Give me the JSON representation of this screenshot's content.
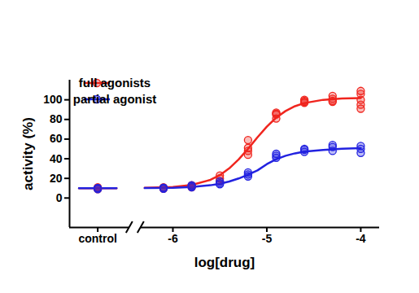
{
  "chart_data": {
    "type": "scatter",
    "xlabel": "log[drug]",
    "ylabel": "activity (%)",
    "xlim": [
      -7.1,
      -3.8
    ],
    "ylim": [
      -30,
      120
    ],
    "xticks": [
      {
        "value": -6.8,
        "label": "control"
      },
      -6,
      -5,
      -4
    ],
    "yticks": [
      0,
      20,
      40,
      60,
      80,
      100
    ],
    "legend": "upper left",
    "series": [
      {
        "name": "full agonists",
        "color": "#f0251e",
        "type": "scatter",
        "marker": "circle",
        "x": [
          -6.8,
          -6.8,
          -6.8,
          -6.8,
          -6.1,
          -6.1,
          -6.1,
          -5.8,
          -5.8,
          -5.8,
          -5.5,
          -5.5,
          -5.5,
          -5.2,
          -5.2,
          -5.2,
          -5.2,
          -4.9,
          -4.9,
          -4.9,
          -4.9,
          -4.6,
          -4.6,
          -4.6,
          -4.6,
          -4.3,
          -4.3,
          -4.3,
          -4.3,
          -4.0,
          -4.0,
          -4.0,
          -4.0,
          -4.0
        ],
        "values": [
          10,
          9,
          11,
          10,
          10,
          11,
          9.5,
          11,
          13,
          12,
          20,
          23,
          17,
          44,
          51,
          59,
          48,
          81,
          85,
          87,
          86,
          98,
          100,
          99,
          97,
          104,
          101,
          99,
          98,
          109,
          106,
          100,
          95,
          91
        ],
        "fit": {
          "type": "line",
          "line_style": "solid",
          "x": [
            -7.0,
            -6.6,
            -6.45,
            -6.3,
            -6.0,
            -5.8,
            -5.6,
            -5.5,
            -5.4,
            -5.3,
            -5.2,
            -5.1,
            -5.0,
            -4.9,
            -4.8,
            -4.7,
            -4.6,
            -4.4,
            -4.2,
            -4.0
          ],
          "values": [
            10,
            10,
            null,
            10.3,
            11.2,
            13.3,
            18.5,
            23.3,
            30.2,
            39.3,
            50.1,
            61.8,
            72.7,
            81.9,
            88.6,
            93.5,
            96.7,
            100,
            101.3,
            101.7
          ]
        }
      },
      {
        "name": "partial agonist",
        "color": "#2222e0",
        "type": "scatter",
        "marker": "circle",
        "x": [
          -6.8,
          -6.8,
          -6.8,
          -6.1,
          -6.1,
          -6.1,
          -5.8,
          -5.8,
          -5.8,
          -5.5,
          -5.5,
          -5.5,
          -5.2,
          -5.2,
          -5.2,
          -4.9,
          -4.9,
          -4.9,
          -4.6,
          -4.6,
          -4.6,
          -4.3,
          -4.3,
          -4.3,
          -4.0,
          -4.0,
          -4.0
        ],
        "values": [
          10,
          9,
          10,
          10,
          9.5,
          10.5,
          11,
          13,
          12,
          17,
          15,
          14,
          22,
          24,
          26,
          41,
          43,
          45,
          47,
          50,
          49,
          48,
          52,
          54,
          53,
          50,
          46
        ],
        "fit": {
          "type": "line",
          "line_style": "solid",
          "x": [
            -7.0,
            -6.6,
            -6.45,
            -6.3,
            -6.0,
            -5.8,
            -5.6,
            -5.5,
            -5.4,
            -5.3,
            -5.2,
            -5.1,
            -5.0,
            -4.9,
            -4.8,
            -4.7,
            -4.6,
            -4.4,
            -4.2,
            -4.0
          ],
          "values": [
            10,
            10,
            null,
            10.1,
            10.5,
            11.3,
            13,
            14.6,
            16.8,
            19.9,
            23.7,
            28.1,
            34.5,
            39.5,
            43,
            45.5,
            47.3,
            49,
            50.2,
            50.7
          ]
        }
      }
    ]
  }
}
